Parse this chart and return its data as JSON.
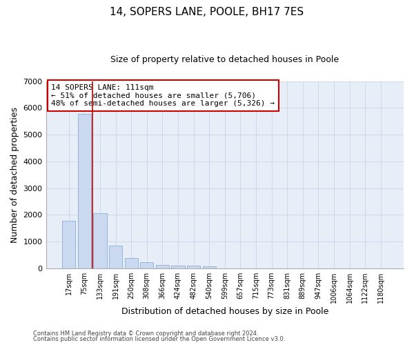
{
  "title1": "14, SOPERS LANE, POOLE, BH17 7ES",
  "title2": "Size of property relative to detached houses in Poole",
  "xlabel": "Distribution of detached houses by size in Poole",
  "ylabel": "Number of detached properties",
  "categories": [
    "17sqm",
    "75sqm",
    "133sqm",
    "191sqm",
    "250sqm",
    "308sqm",
    "366sqm",
    "424sqm",
    "482sqm",
    "540sqm",
    "599sqm",
    "657sqm",
    "715sqm",
    "773sqm",
    "831sqm",
    "889sqm",
    "947sqm",
    "1006sqm",
    "1064sqm",
    "1122sqm",
    "1180sqm"
  ],
  "values": [
    1780,
    5780,
    2060,
    830,
    370,
    220,
    115,
    95,
    90,
    65,
    0,
    0,
    0,
    0,
    0,
    0,
    0,
    0,
    0,
    0,
    0
  ],
  "bar_color": "#cad9ef",
  "bar_edge_color": "#8aadd4",
  "vline_color": "#cc0000",
  "vline_x": 1.5,
  "annotation_text": "14 SOPERS LANE: 111sqm\n← 51% of detached houses are smaller (5,706)\n48% of semi-detached houses are larger (5,326) →",
  "annotation_box_edge_color": "#cc0000",
  "ylim": [
    0,
    7000
  ],
  "yticks": [
    0,
    1000,
    2000,
    3000,
    4000,
    5000,
    6000,
    7000
  ],
  "grid_color": "#c8d4e8",
  "background_color": "#e8eef8",
  "footer1": "Contains HM Land Registry data © Crown copyright and database right 2024.",
  "footer2": "Contains public sector information licensed under the Open Government Licence v3.0.",
  "title1_fontsize": 11,
  "title2_fontsize": 9,
  "tick_fontsize": 7,
  "label_fontsize": 9,
  "annotation_fontsize": 8,
  "footer_fontsize": 6
}
